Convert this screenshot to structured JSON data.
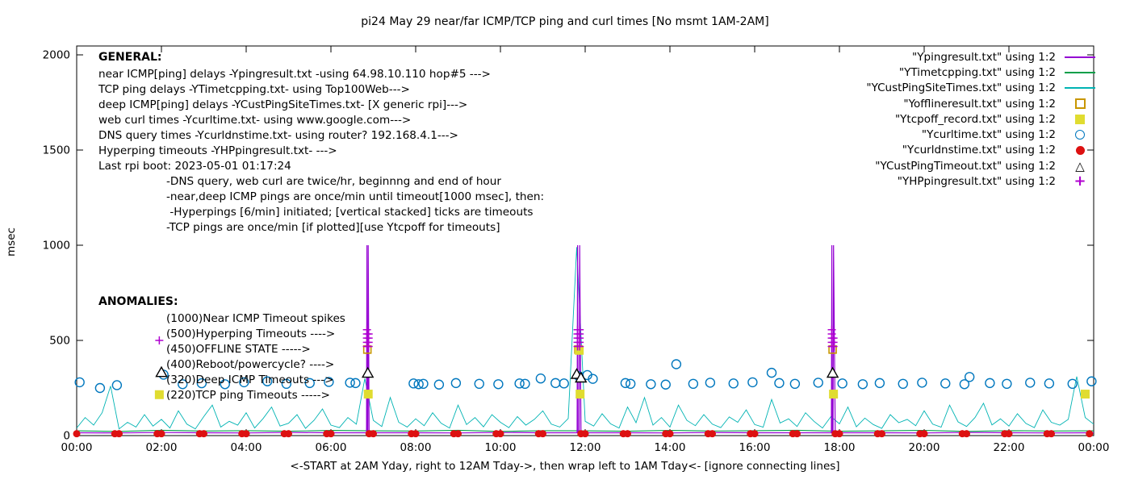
{
  "chart_data": {
    "type": "line",
    "title": "pi24 May 29  near/far ICMP/TCP ping and curl times [No msmt 1AM-2AM]",
    "xlabel": "<-START at 2AM Yday, right to 12AM Tday->, then wrap left to 1AM Tday<- [ignore connecting lines]",
    "ylabel": "msec",
    "ylim": [
      0,
      2000
    ],
    "y_ticks": [
      0,
      500,
      1000,
      1500,
      2000
    ],
    "x_ticks": [
      "00:00",
      "02:00",
      "04:00",
      "06:00",
      "08:00",
      "10:00",
      "12:00",
      "14:00",
      "16:00",
      "18:00",
      "20:00",
      "22:00",
      "00:00"
    ],
    "x_hours_span": 24,
    "legend": [
      {
        "label": "\"Ypingresult.txt\" using 1:2",
        "type": "line",
        "color": "#9400d3"
      },
      {
        "label": "\"YTimetcpping.txt\" using 1:2",
        "type": "line",
        "color": "#009e49"
      },
      {
        "label": "\"YCustPingSiteTimes.txt\" using 1:2",
        "type": "line",
        "color": "#00b3b3"
      },
      {
        "label": "\"Yofflineresult.txt\" using 1:2",
        "type": "square-open",
        "color": "#c89600"
      },
      {
        "label": "\"Ytcpoff_record.txt\" using 1:2",
        "type": "square-filled",
        "color": "#e0dc30"
      },
      {
        "label": "\"Ycurltime.txt\" using 1:2",
        "type": "circle-open",
        "color": "#0077be"
      },
      {
        "label": "\"Ycurldnstime.txt\" using 1:2",
        "type": "circle-filled",
        "color": "#dd1111"
      },
      {
        "label": "\"YCustPingTimeout.txt\" using 1:2",
        "type": "triangle-open",
        "color": "#000000"
      },
      {
        "label": "\"YHPpingresult.txt\" using 1:2",
        "type": "plus",
        "color": "#b000d0"
      }
    ],
    "series": {
      "ypingresult": {
        "name": "Ypingresult.txt",
        "color": "#9400d3",
        "points": [
          [
            0,
            15
          ],
          [
            1,
            14
          ],
          [
            2,
            16
          ],
          [
            3,
            15
          ],
          [
            4,
            14
          ],
          [
            5,
            16
          ],
          [
            6,
            15
          ],
          [
            6.8,
            15
          ],
          [
            6.84,
            15
          ],
          [
            6.85,
            1000
          ],
          [
            6.855,
            5
          ],
          [
            6.87,
            5
          ],
          [
            6.88,
            1000
          ],
          [
            6.9,
            15
          ],
          [
            8,
            15
          ],
          [
            9,
            14
          ],
          [
            10,
            16
          ],
          [
            11,
            15
          ],
          [
            11.78,
            15
          ],
          [
            11.81,
            15
          ],
          [
            11.82,
            1000
          ],
          [
            11.83,
            5
          ],
          [
            11.86,
            5
          ],
          [
            11.87,
            1000
          ],
          [
            11.9,
            15
          ],
          [
            13,
            15
          ],
          [
            14,
            14
          ],
          [
            15,
            16
          ],
          [
            16,
            15
          ],
          [
            17,
            15
          ],
          [
            17.78,
            15
          ],
          [
            17.81,
            15
          ],
          [
            17.82,
            1000
          ],
          [
            17.83,
            5
          ],
          [
            17.85,
            5
          ],
          [
            17.86,
            1000
          ],
          [
            17.9,
            15
          ],
          [
            19,
            15
          ],
          [
            20,
            14
          ],
          [
            21,
            16
          ],
          [
            22,
            15
          ],
          [
            23,
            14
          ],
          [
            24,
            15
          ]
        ]
      },
      "ytimetcpping": {
        "name": "YTimetcpping.txt",
        "color": "#009e49",
        "x_step": 1,
        "values": [
          25,
          22,
          28,
          24,
          26,
          23,
          27,
          25,
          24,
          28,
          22,
          26,
          25,
          23,
          27,
          24,
          26,
          28,
          23,
          25,
          27,
          22,
          26,
          24,
          25
        ]
      },
      "ycustpingsitetimes": {
        "name": "YCustPingSiteTimes.txt",
        "color": "#00b3b3",
        "x_step": 0.2,
        "values": [
          40,
          95,
          55,
          120,
          260,
          35,
          70,
          45,
          110,
          50,
          85,
          40,
          130,
          60,
          35,
          100,
          160,
          45,
          75,
          55,
          120,
          40,
          90,
          150,
          50,
          65,
          110,
          38,
          80,
          140,
          55,
          42,
          95,
          60,
          300,
          80,
          48,
          200,
          70,
          45,
          88,
          52,
          120,
          65,
          40,
          160,
          58,
          95,
          46,
          110,
          70,
          42,
          100,
          55,
          85,
          130,
          60,
          45,
          90,
          990,
          75,
          50,
          115,
          62,
          40,
          150,
          68,
          200,
          55,
          95,
          45,
          160,
          80,
          52,
          110,
          60,
          42,
          98,
          70,
          135,
          58,
          44,
          190,
          66,
          88,
          48,
          120,
          75,
          40,
          100,
          62,
          150,
          46,
          92,
          58,
          38,
          110,
          68,
          85,
          52,
          130,
          60,
          44,
          160,
          72,
          48,
          95,
          170,
          56,
          88,
          50,
          115,
          64,
          42,
          135,
          70,
          55,
          85,
          310,
          95,
          60
        ]
      },
      "yofflineresult": {
        "name": "Yofflineresult.txt",
        "color": "#c89600",
        "points": [
          [
            6.86,
            452
          ],
          [
            11.84,
            452
          ],
          [
            17.84,
            452
          ]
        ]
      },
      "ytcpoff_record": {
        "name": "Ytcpoff_record.txt",
        "color": "#e0dc30",
        "points": [
          [
            6.88,
            218
          ],
          [
            11.86,
            448
          ],
          [
            11.88,
            218
          ],
          [
            17.86,
            218
          ],
          [
            23.8,
            218
          ]
        ]
      },
      "ycurltime": {
        "name": "Ycurltime.txt",
        "color": "#0077be",
        "points": [
          [
            0.07,
            280
          ],
          [
            0.55,
            250
          ],
          [
            0.95,
            265
          ],
          [
            2.05,
            320
          ],
          [
            2.5,
            270
          ],
          [
            2.95,
            275
          ],
          [
            3.5,
            270
          ],
          [
            3.95,
            280
          ],
          [
            4.5,
            285
          ],
          [
            4.95,
            272
          ],
          [
            5.5,
            276
          ],
          [
            5.95,
            282
          ],
          [
            6.45,
            278
          ],
          [
            6.58,
            276
          ],
          [
            7.95,
            274
          ],
          [
            8.07,
            270
          ],
          [
            8.18,
            272
          ],
          [
            8.55,
            268
          ],
          [
            8.95,
            276
          ],
          [
            9.5,
            272
          ],
          [
            9.95,
            270
          ],
          [
            10.45,
            274
          ],
          [
            10.58,
            272
          ],
          [
            10.95,
            300
          ],
          [
            11.3,
            276
          ],
          [
            11.5,
            274
          ],
          [
            11.85,
            312
          ],
          [
            12.05,
            318
          ],
          [
            12.18,
            298
          ],
          [
            12.95,
            276
          ],
          [
            13.07,
            272
          ],
          [
            13.55,
            270
          ],
          [
            13.9,
            268
          ],
          [
            14.15,
            375
          ],
          [
            14.55,
            272
          ],
          [
            14.95,
            278
          ],
          [
            15.5,
            274
          ],
          [
            15.95,
            280
          ],
          [
            16.4,
            330
          ],
          [
            16.58,
            276
          ],
          [
            16.95,
            272
          ],
          [
            17.5,
            278
          ],
          [
            18.07,
            274
          ],
          [
            18.55,
            270
          ],
          [
            18.95,
            276
          ],
          [
            19.5,
            272
          ],
          [
            19.95,
            278
          ],
          [
            20.5,
            274
          ],
          [
            20.95,
            270
          ],
          [
            21.07,
            308
          ],
          [
            21.55,
            276
          ],
          [
            21.95,
            272
          ],
          [
            22.5,
            278
          ],
          [
            22.95,
            274
          ],
          [
            23.5,
            272
          ],
          [
            23.95,
            285
          ]
        ]
      },
      "ycurldnstime": {
        "name": "Ycurldnstime.txt",
        "color": "#dd1111",
        "y": 10,
        "hours": [
          0,
          0.9,
          1,
          1.9,
          2,
          2.9,
          3,
          3.9,
          4,
          4.9,
          5,
          5.9,
          6,
          6.9,
          7,
          7.9,
          8,
          8.9,
          9,
          9.9,
          10,
          10.9,
          11,
          11.9,
          12,
          12.9,
          13,
          13.9,
          14,
          14.9,
          15,
          15.9,
          16,
          16.9,
          17,
          17.9,
          18,
          18.9,
          19,
          19.9,
          20,
          20.9,
          21,
          21.9,
          22,
          22.9,
          23,
          23.9
        ]
      },
      "ycustpingtimeout": {
        "name": "YCustPingTimeout.txt",
        "color": "#000000",
        "points": [
          [
            6.87,
            328
          ],
          [
            11.8,
            322
          ],
          [
            11.9,
            303
          ],
          [
            17.84,
            328
          ]
        ]
      },
      "yhppingresult": {
        "name": "YHPpingresult.txt",
        "color": "#b000d0",
        "points": [
          [
            6.85,
            468
          ],
          [
            6.85,
            490
          ],
          [
            6.85,
            512
          ],
          [
            6.85,
            534
          ],
          [
            6.85,
            556
          ],
          [
            6.89,
            468
          ],
          [
            6.89,
            490
          ],
          [
            6.89,
            512
          ],
          [
            6.89,
            534
          ],
          [
            11.82,
            468
          ],
          [
            11.82,
            490
          ],
          [
            11.82,
            512
          ],
          [
            11.82,
            534
          ],
          [
            11.82,
            556
          ],
          [
            11.87,
            468
          ],
          [
            11.87,
            490
          ],
          [
            11.87,
            512
          ],
          [
            11.87,
            534
          ],
          [
            11.87,
            556
          ],
          [
            17.82,
            468
          ],
          [
            17.82,
            490
          ],
          [
            17.82,
            512
          ],
          [
            17.82,
            534
          ],
          [
            17.82,
            556
          ],
          [
            17.86,
            468
          ],
          [
            17.86,
            490
          ],
          [
            17.86,
            512
          ]
        ]
      }
    },
    "annotation_markers": [
      {
        "type": "plus",
        "x": 1.95,
        "y": 500,
        "color": "#b000d0"
      },
      {
        "type": "triangle-open",
        "x": 2.0,
        "y": 332,
        "color": "#000000"
      },
      {
        "type": "square-filled",
        "x": 1.95,
        "y": 215,
        "color": "#e0dc30"
      }
    ]
  },
  "annotations": {
    "general": {
      "heading": "GENERAL:",
      "lines": [
        "near ICMP[ping] delays -Ypingresult.txt -using 64.98.10.110 hop#5 --->",
        "TCP ping delays -YTimetcpping.txt- using Top100Web--->",
        "deep ICMP[ping] delays -YCustPingSiteTimes.txt- [X generic rpi]--->",
        "web curl times -Ycurltime.txt- using www.google.com--->",
        "DNS query times -Ycurldnstime.txt- using router? 192.168.4.1--->",
        "Hyperping timeouts -YHPpingresult.txt- --->",
        "Last rpi boot: 2023-05-01 01:17:24"
      ],
      "indented_lines": [
        "-DNS query, web curl are twice/hr, beginnng and end of hour",
        "-near,deep ICMP pings are once/min until timeout[1000 msec], then:",
        " -Hyperpings [6/min] initiated; [vertical stacked] ticks are timeouts",
        "-TCP pings are once/min [if plotted][use Ytcpoff for timeouts]"
      ]
    },
    "anomalies": {
      "heading": "ANOMALIES:",
      "lines": [
        "(1000)Near ICMP Timeout spikes",
        "(500)Hyperping Timeouts ---->",
        "(450)OFFLINE STATE ----->",
        "(400)Reboot/powercycle? ---->",
        "(320)Deep ICMP Timeouts --->",
        "(220)TCP ping Timeouts ----->"
      ]
    }
  }
}
